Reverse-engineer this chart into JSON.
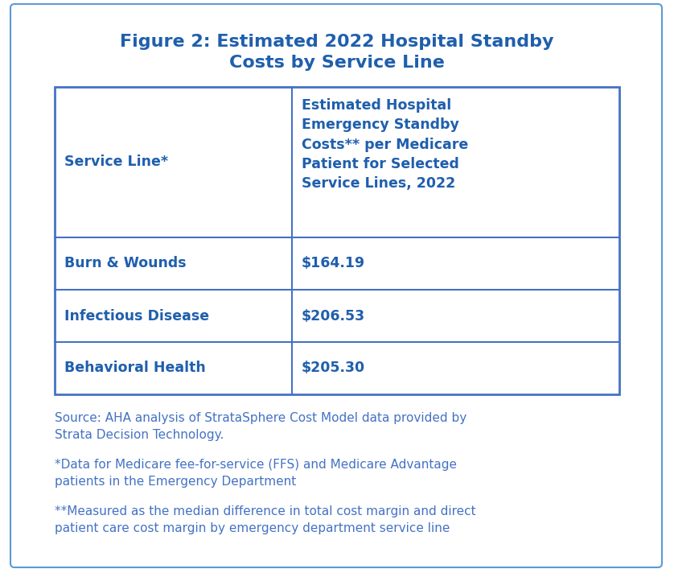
{
  "title_line1": "Figure 2: Estimated 2022 Hospital Standby",
  "title_line2": "Costs by Service Line",
  "title_color": "#1F5FAD",
  "background_color": "#FFFFFF",
  "outer_border_color": "#5B9BD5",
  "table_border_color": "#4472C4",
  "header_col1": "Service Line*",
  "header_col2": "Estimated Hospital\nEmergency Standby\nCosts** per Medicare\nPatient for Selected\nService Lines, 2022",
  "rows": [
    {
      "service_line": "Burn & Wounds",
      "cost": "$164.19"
    },
    {
      "service_line": "Infectious Disease",
      "cost": "$206.53"
    },
    {
      "service_line": "Behavioral Health",
      "cost": "$205.30"
    }
  ],
  "text_color": "#1F5FAD",
  "source_lines": [
    "Source: AHA analysis of StrataSphere Cost Model data provided by\nStrata Decision Technology.",
    "*Data for Medicare fee-for-service (FFS) and Medicare Advantage\npatients in the Emergency Department",
    "**Measured as the median difference in total cost margin and direct\npatient care cost margin by emergency department service line"
  ],
  "source_color": "#4472C4",
  "title_fontsize": 16,
  "header_fontsize": 12.5,
  "cell_fontsize": 12.5,
  "source_fontsize": 11
}
